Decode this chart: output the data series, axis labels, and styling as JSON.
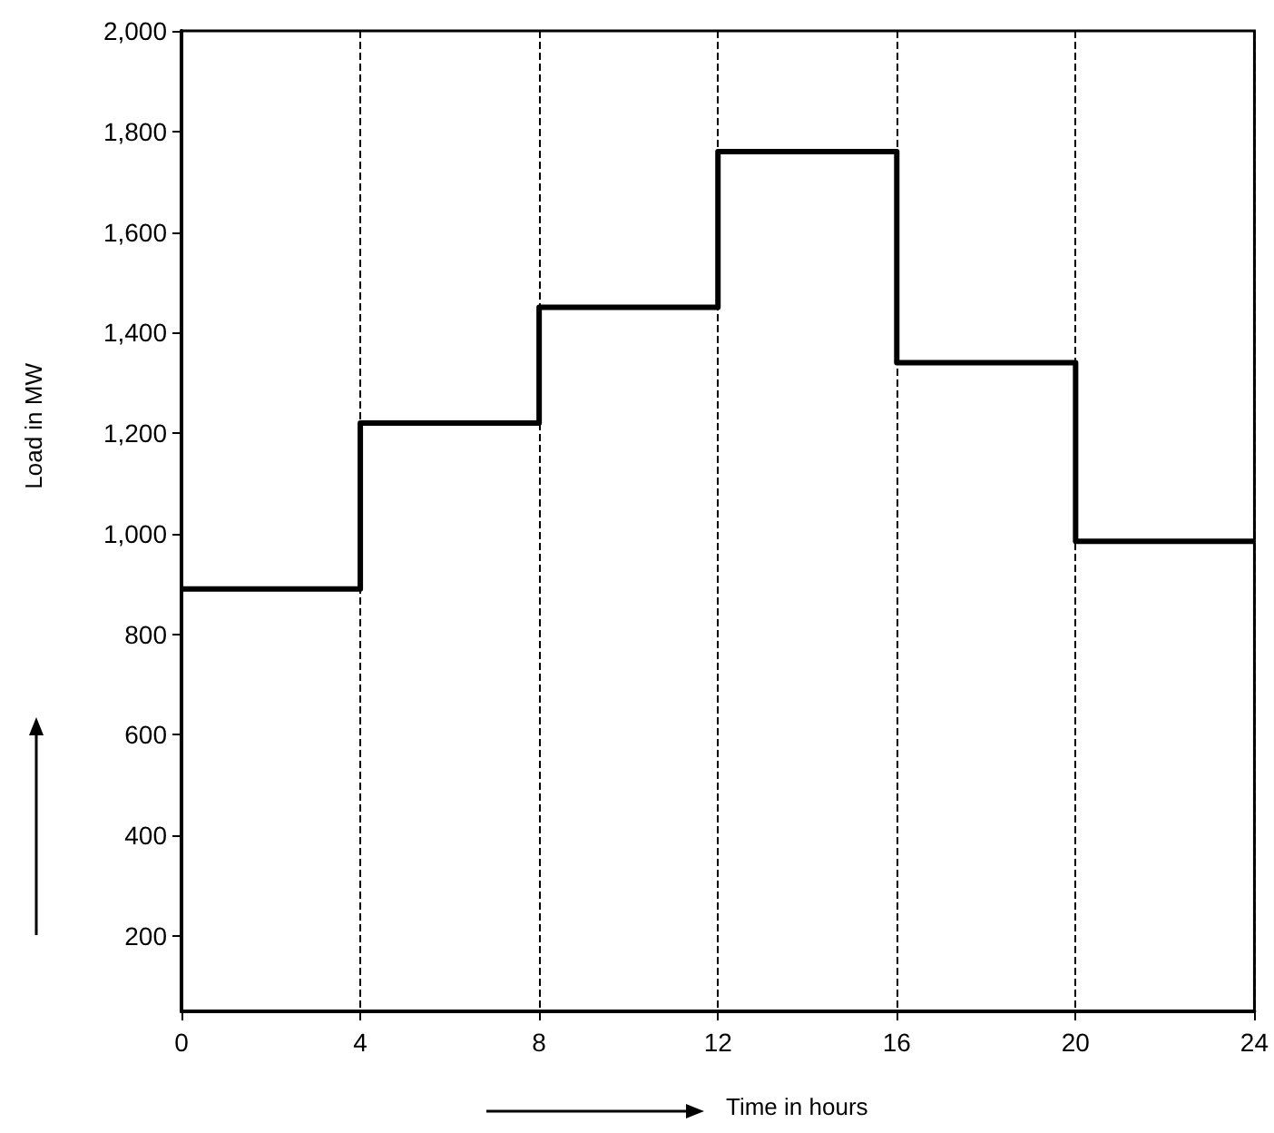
{
  "chart_data": {
    "type": "step",
    "xlabel": "Time in hours",
    "ylabel": "Load in MW",
    "x": [
      0,
      4,
      8,
      12,
      16,
      20,
      24
    ],
    "values": [
      890,
      1220,
      1450,
      1760,
      1340,
      985,
      985
    ],
    "color": "#000000",
    "xlim": [
      0,
      24
    ],
    "xticks": [
      0,
      4,
      8,
      12,
      16,
      20,
      24
    ],
    "ylim": [
      50,
      2000
    ],
    "yticks": [
      200,
      400,
      600,
      800,
      {
        "value": 1000,
        "label": "1,000"
      },
      {
        "value": 1200,
        "label": "1,200"
      },
      {
        "value": 1400,
        "label": "1,400"
      },
      {
        "value": 1600,
        "label": "1,600"
      },
      {
        "value": 1800,
        "label": "1,800"
      },
      {
        "value": 2000,
        "label": "2,000"
      }
    ],
    "grid": "x",
    "marker": "none",
    "line_style": "solid"
  }
}
